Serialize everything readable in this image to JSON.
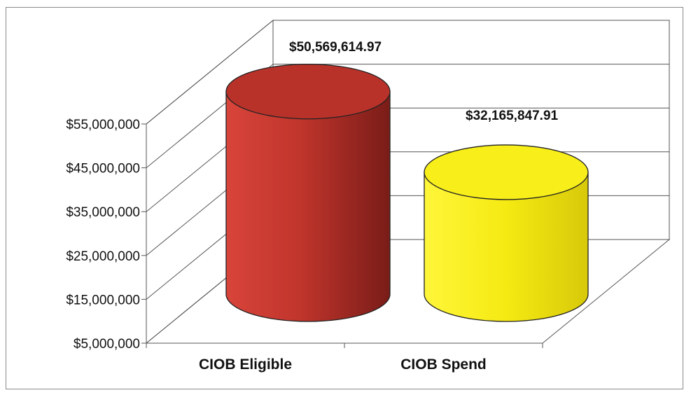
{
  "chart_data": {
    "type": "bar",
    "style": "3d-cylinder",
    "categories": [
      "CIOB Eligible",
      "CIOB Spend"
    ],
    "values": [
      50569614.97,
      32165847.91
    ],
    "data_labels": [
      "$50,569,614.97",
      "$32,165,847.91"
    ],
    "colors": [
      "#b8322a",
      "#f7ee1a"
    ],
    "ylim": [
      5000000,
      55000000
    ],
    "yticks": [
      5000000,
      15000000,
      25000000,
      35000000,
      45000000,
      55000000
    ],
    "ytick_labels": [
      "$5,000,000",
      "$15,000,000",
      "$25,000,000",
      "$35,000,000",
      "$45,000,000",
      "$55,000,000"
    ],
    "title": "",
    "xlabel": "",
    "ylabel": "",
    "legend": false,
    "grid": true
  }
}
